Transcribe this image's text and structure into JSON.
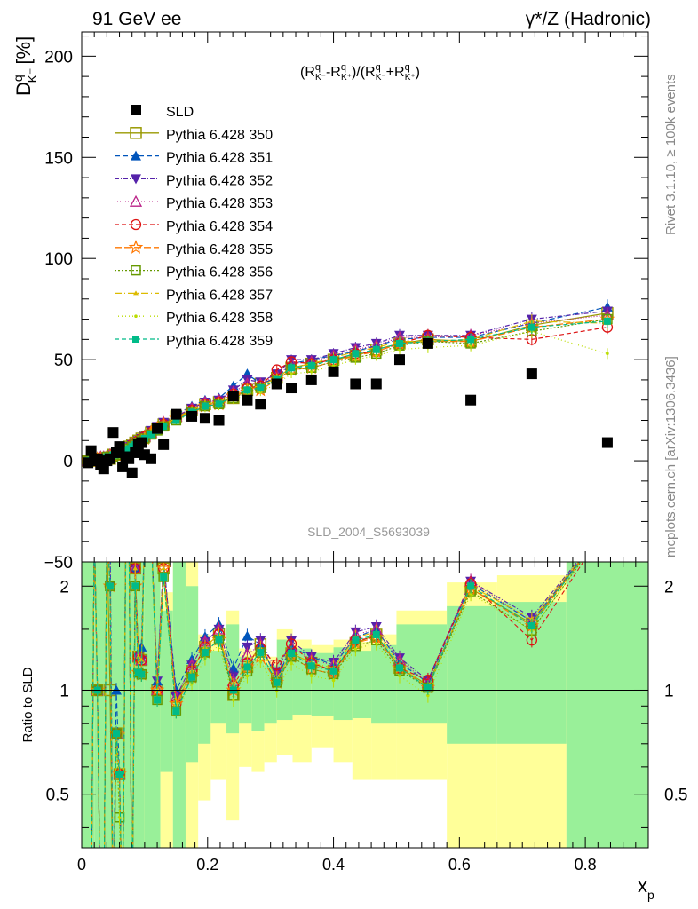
{
  "header": {
    "left": "91 GeV ee",
    "right": "γ*/Z (Hadronic)"
  },
  "side_labels": {
    "rivet": "Rivet 3.1.10, ≥ 100k events",
    "mcplots": "mcplots.cern.ch [arXiv:1306.3436]"
  },
  "main_plot": {
    "ylabel_main": "D",
    "ylabel_sup": "q",
    "ylabel_sub": "K⁻",
    "ylabel_unit": "[%]",
    "formula": "(Rq K⁻ - Rq K⁺)/(Rq K⁻ + Rq K⁺)",
    "watermark": "SLD_2004_S5693039"
  },
  "ratio_plot": {
    "ylabel": "Ratio to SLD"
  },
  "colors": {
    "green_band": "#99f099",
    "yellow_band": "#ffff99",
    "sld": "#000000"
  },
  "chart_data": {
    "type": "scatter",
    "xlabel": "x",
    "xlabel_sub": "p",
    "xlim": [
      0,
      0.9
    ],
    "ylim_main": [
      -50,
      212
    ],
    "ylim_ratio": [
      0.35,
      2.35
    ],
    "x_ticks": [
      "0",
      "0.2",
      "0.4",
      "0.6",
      "0.8"
    ],
    "y_ticks_main": [
      "−50",
      "0",
      "50",
      "100",
      "150",
      "200"
    ],
    "y_ticks_ratio": [
      "0.5",
      "1",
      "2"
    ],
    "x": [
      0.01,
      0.015,
      0.02,
      0.025,
      0.03,
      0.035,
      0.04,
      0.045,
      0.05,
      0.055,
      0.06,
      0.065,
      0.07,
      0.075,
      0.08,
      0.085,
      0.09,
      0.095,
      0.1,
      0.11,
      0.12,
      0.13,
      0.15,
      0.175,
      0.196,
      0.218,
      0.241,
      0.263,
      0.284,
      0.31,
      0.333,
      0.365,
      0.4,
      0.435,
      0.468,
      0.505,
      0.55,
      0.618,
      0.715,
      0.835
    ],
    "sld": [
      -1,
      5,
      0,
      1,
      -2,
      -4,
      0,
      1,
      14,
      4,
      7,
      -3,
      2,
      1,
      -6,
      4,
      8,
      9,
      3,
      1,
      16,
      8,
      23,
      22,
      21,
      20,
      32,
      30,
      28,
      38,
      36,
      40,
      44,
      38,
      38,
      50,
      58,
      30,
      43,
      9
    ],
    "ratio_bands": [
      {
        "x0": 0.0,
        "x1": 0.02,
        "g": [
          0.35,
          2.35
        ],
        "y": [
          0.35,
          2.35
        ]
      },
      {
        "x0": 0.02,
        "x1": 0.1,
        "g": [
          0.35,
          2.35
        ],
        "y": [
          0.35,
          2.35
        ]
      },
      {
        "x0": 0.1,
        "x1": 0.125,
        "g": [
          0.35,
          2.35
        ],
        "y": [
          0.35,
          2.35
        ]
      },
      {
        "x0": 0.125,
        "x1": 0.145,
        "g": [
          0.58,
          1.7
        ],
        "y": [
          0.35,
          1.92
        ]
      },
      {
        "x0": 0.145,
        "x1": 0.165,
        "g": [
          0.35,
          2.35
        ],
        "y": [
          0.35,
          2.35
        ]
      },
      {
        "x0": 0.165,
        "x1": 0.185,
        "g": [
          0.62,
          2.0
        ],
        "y": [
          0.35,
          2.35
        ]
      },
      {
        "x0": 0.185,
        "x1": 0.205,
        "g": [
          0.7,
          1.35
        ],
        "y": [
          0.48,
          1.45
        ]
      },
      {
        "x0": 0.205,
        "x1": 0.23,
        "g": [
          0.8,
          1.3
        ],
        "y": [
          0.55,
          1.38
        ]
      },
      {
        "x0": 0.23,
        "x1": 0.25,
        "g": [
          0.75,
          1.55
        ],
        "y": [
          0.42,
          1.7
        ]
      },
      {
        "x0": 0.25,
        "x1": 0.27,
        "g": [
          0.8,
          1.25
        ],
        "y": [
          0.6,
          1.32
        ]
      },
      {
        "x0": 0.27,
        "x1": 0.29,
        "g": [
          0.76,
          1.23
        ],
        "y": [
          0.58,
          1.3
        ]
      },
      {
        "x0": 0.29,
        "x1": 0.31,
        "g": [
          0.8,
          1.18
        ],
        "y": [
          0.62,
          1.25
        ]
      },
      {
        "x0": 0.31,
        "x1": 0.335,
        "g": [
          0.82,
          1.4
        ],
        "y": [
          0.65,
          1.5
        ]
      },
      {
        "x0": 0.335,
        "x1": 0.365,
        "g": [
          0.85,
          1.32
        ],
        "y": [
          0.62,
          1.4
        ]
      },
      {
        "x0": 0.365,
        "x1": 0.4,
        "g": [
          0.84,
          1.28
        ],
        "y": [
          0.68,
          1.35
        ]
      },
      {
        "x0": 0.4,
        "x1": 0.43,
        "g": [
          0.82,
          1.33
        ],
        "y": [
          0.62,
          1.4
        ]
      },
      {
        "x0": 0.43,
        "x1": 0.46,
        "g": [
          0.83,
          1.3
        ],
        "y": [
          0.55,
          1.38
        ]
      },
      {
        "x0": 0.46,
        "x1": 0.5,
        "g": [
          0.8,
          1.35
        ],
        "y": [
          0.55,
          1.45
        ]
      },
      {
        "x0": 0.5,
        "x1": 0.58,
        "g": [
          0.8,
          1.55
        ],
        "y": [
          0.55,
          1.7
        ]
      },
      {
        "x0": 0.58,
        "x1": 0.66,
        "g": [
          0.7,
          1.75
        ],
        "y": [
          0.35,
          2.05
        ]
      },
      {
        "x0": 0.66,
        "x1": 0.77,
        "g": [
          0.7,
          1.8
        ],
        "y": [
          0.35,
          2.15
        ]
      },
      {
        "x0": 0.77,
        "x1": 0.9,
        "g": [
          0.35,
          2.35
        ],
        "y": [
          0.35,
          2.35
        ]
      }
    ],
    "series": [
      {
        "name": "Pythia 6.428 350",
        "color": "#999900",
        "marker": "square-open",
        "dash": "",
        "values": [
          0,
          0,
          1,
          1,
          1,
          1,
          1,
          1,
          3,
          3,
          4,
          4,
          6,
          7,
          8,
          9,
          10,
          11,
          12,
          14,
          16,
          18,
          22,
          25,
          28,
          29,
          31,
          35,
          38,
          41,
          46,
          48,
          50,
          52,
          55,
          58,
          60,
          59,
          67,
          73
        ]
      },
      {
        "name": "Pythia 6.428 351",
        "color": "#0055bb",
        "marker": "triangle-up",
        "dash": "6,3",
        "values": [
          0,
          1,
          1,
          1,
          2,
          2,
          2,
          3,
          3,
          4,
          4,
          5,
          6,
          7,
          8,
          9,
          10,
          12,
          13,
          15,
          17,
          19,
          23,
          27,
          30,
          31,
          37,
          43,
          38,
          41,
          48,
          50,
          52,
          54,
          57,
          60,
          61,
          61,
          68,
          76
        ]
      },
      {
        "name": "Pythia 6.428 352",
        "color": "#5522aa",
        "marker": "triangle-down",
        "dash": "5,2,1,2",
        "values": [
          0,
          1,
          1,
          1,
          1,
          2,
          2,
          2,
          3,
          3,
          4,
          5,
          6,
          7,
          8,
          9,
          10,
          11,
          12,
          15,
          17,
          19,
          22,
          26,
          29,
          30,
          35,
          40,
          39,
          43,
          50,
          50,
          53,
          56,
          58,
          62,
          62,
          62,
          70,
          74
        ]
      },
      {
        "name": "Pythia 6.428 353",
        "color": "#bb2288",
        "marker": "triangle-open",
        "dash": "1,2",
        "values": [
          0,
          1,
          1,
          1,
          2,
          2,
          2,
          3,
          3,
          3,
          4,
          5,
          6,
          7,
          8,
          9,
          10,
          11,
          12,
          14,
          16,
          19,
          22,
          26,
          29,
          30,
          34,
          38,
          38,
          42,
          48,
          49,
          52,
          55,
          57,
          61,
          61,
          62,
          68,
          72
        ]
      },
      {
        "name": "Pythia 6.428 354",
        "color": "#dd1111",
        "marker": "circle-open",
        "dash": "5,3",
        "values": [
          0,
          1,
          1,
          1,
          1,
          1,
          2,
          2,
          3,
          3,
          4,
          5,
          5,
          6,
          8,
          9,
          10,
          11,
          12,
          14,
          16,
          18,
          21,
          25,
          28,
          29,
          33,
          36,
          37,
          45,
          49,
          48,
          50,
          53,
          54,
          58,
          62,
          61,
          60,
          66
        ]
      },
      {
        "name": "Pythia 6.428 355",
        "color": "#ff7700",
        "marker": "star-open",
        "dash": "8,3",
        "values": [
          0,
          0,
          1,
          1,
          1,
          1,
          2,
          2,
          3,
          3,
          4,
          4,
          5,
          6,
          7,
          8,
          9,
          10,
          11,
          14,
          16,
          18,
          21,
          24,
          27,
          28,
          32,
          35,
          35,
          40,
          45,
          46,
          49,
          52,
          54,
          58,
          59,
          59,
          66,
          70
        ]
      },
      {
        "name": "Pythia 6.428 356",
        "color": "#669900",
        "marker": "square-open-small",
        "dash": "2,2",
        "values": [
          0,
          0,
          1,
          1,
          1,
          1,
          2,
          2,
          2,
          3,
          3,
          4,
          5,
          6,
          7,
          8,
          9,
          10,
          11,
          13,
          15,
          17,
          20,
          24,
          27,
          28,
          31,
          34,
          36,
          40,
          45,
          46,
          49,
          51,
          53,
          57,
          59,
          58,
          64,
          70
        ]
      },
      {
        "name": "Pythia 6.428 357",
        "color": "#ddbb00",
        "marker": "tri-small",
        "dash": "8,3,1,3",
        "values": [
          0,
          1,
          1,
          1,
          1,
          2,
          2,
          2,
          3,
          3,
          4,
          5,
          6,
          6,
          7,
          9,
          10,
          11,
          12,
          14,
          16,
          18,
          21,
          25,
          28,
          29,
          33,
          36,
          37,
          41,
          46,
          48,
          51,
          54,
          56,
          59,
          59,
          60,
          69,
          68
        ]
      },
      {
        "name": "Pythia 6.428 358",
        "color": "#bbdd00",
        "marker": "dot",
        "dash": "1,3",
        "values": [
          0,
          0,
          1,
          1,
          1,
          1,
          1,
          2,
          2,
          3,
          3,
          4,
          5,
          6,
          7,
          8,
          9,
          10,
          11,
          13,
          15,
          17,
          20,
          23,
          26,
          27,
          30,
          33,
          34,
          38,
          43,
          44,
          47,
          50,
          52,
          55,
          56,
          57,
          64,
          53
        ]
      },
      {
        "name": "Pythia 6.428 359",
        "color": "#00bb88",
        "marker": "square-filled-small",
        "dash": "5,3",
        "values": [
          0,
          0,
          1,
          1,
          1,
          1,
          2,
          2,
          3,
          3,
          4,
          4,
          5,
          6,
          7,
          8,
          9,
          10,
          11,
          13,
          15,
          17,
          20,
          24,
          27,
          28,
          32,
          35,
          36,
          40,
          46,
          47,
          50,
          53,
          55,
          58,
          59,
          60,
          66,
          69
        ]
      }
    ],
    "legend_entries": [
      "SLD",
      "Pythia 6.428 350",
      "Pythia 6.428 351",
      "Pythia 6.428 352",
      "Pythia 6.428 353",
      "Pythia 6.428 354",
      "Pythia 6.428 355",
      "Pythia 6.428 356",
      "Pythia 6.428 357",
      "Pythia 6.428 358",
      "Pythia 6.428 359"
    ],
    "legend_position": "top-left"
  }
}
